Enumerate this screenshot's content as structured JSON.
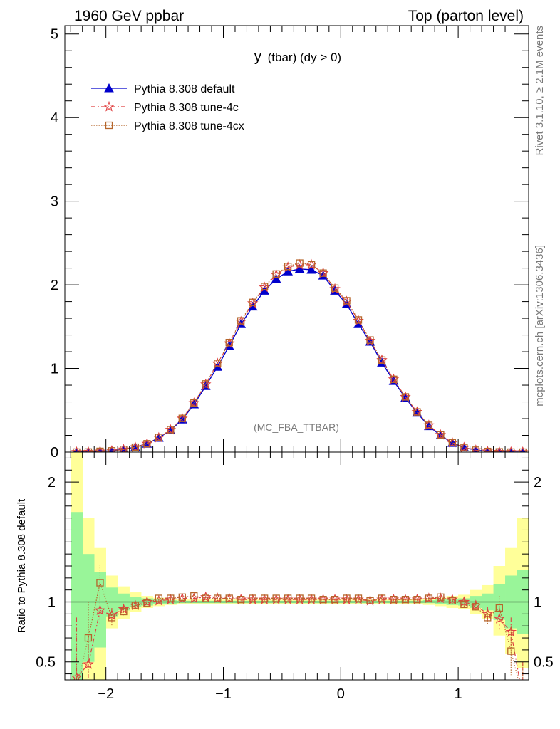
{
  "header": {
    "left": "1960 GeV ppbar",
    "right": "Top (parton level)"
  },
  "side_labels": {
    "rivet": "Rivet 3.1.10, ≥ 2.1M events",
    "mcplots": "mcplots.cern.ch [arXiv:1306.3436]"
  },
  "plot_title": {
    "main": "y",
    "suffix": "(tbar) (dy > 0)"
  },
  "analysis_tag": "(MC_FBA_TTBAR)",
  "ratio_ylabel": "Ratio to Pythia 8.308 default",
  "colors": {
    "default": "#0000cc",
    "tune4c": "#e04040",
    "tune4cx": "#b5652a",
    "band_inner": "#99f599",
    "band_outer": "#ffff99"
  },
  "legend": [
    {
      "label": "Pythia 8.308 default",
      "key": "default"
    },
    {
      "label": "Pythia 8.308 tune-4c",
      "key": "tune4c"
    },
    {
      "label": "Pythia 8.308 tune-4cx",
      "key": "tune4cx"
    }
  ],
  "chart_data": [
    {
      "type": "line",
      "panel": "main",
      "xlim": [
        -2.35,
        1.6
      ],
      "ylim": [
        0,
        5.1
      ],
      "xticks": [
        -2,
        -1,
        0,
        1
      ],
      "yticks": [
        0,
        1,
        2,
        3,
        4,
        5
      ],
      "ytick_labels": [
        "0",
        "1",
        "2",
        "3",
        "4",
        "5"
      ],
      "x": [
        -2.25,
        -2.15,
        -2.05,
        -1.95,
        -1.85,
        -1.75,
        -1.65,
        -1.55,
        -1.45,
        -1.35,
        -1.25,
        -1.15,
        -1.05,
        -0.95,
        -0.85,
        -0.75,
        -0.65,
        -0.55,
        -0.45,
        -0.35,
        -0.25,
        -0.15,
        -0.05,
        0.05,
        0.15,
        0.25,
        0.35,
        0.45,
        0.55,
        0.65,
        0.75,
        0.85,
        0.95,
        1.05,
        1.15,
        1.25,
        1.35,
        1.45,
        1.55
      ],
      "series": [
        {
          "name": "Pythia 8.308 default",
          "key": "default",
          "values": [
            0.002,
            0.004,
            0.008,
            0.017,
            0.033,
            0.06,
            0.1,
            0.17,
            0.26,
            0.39,
            0.57,
            0.79,
            1.02,
            1.27,
            1.53,
            1.74,
            1.93,
            2.07,
            2.16,
            2.19,
            2.18,
            2.11,
            1.93,
            1.77,
            1.53,
            1.32,
            1.07,
            0.85,
            0.65,
            0.47,
            0.31,
            0.2,
            0.11,
            0.055,
            0.024,
            0.009,
            0.003,
            0.001,
            0.0005
          ]
        },
        {
          "name": "Pythia 8.308 tune-4c",
          "key": "tune4c",
          "values": [
            0.0008,
            0.002,
            0.0075,
            0.015,
            0.031,
            0.058,
            0.1,
            0.172,
            0.266,
            0.401,
            0.586,
            0.81,
            1.06,
            1.3,
            1.56,
            1.78,
            1.97,
            2.12,
            2.21,
            2.24,
            2.24,
            2.14,
            1.95,
            1.8,
            1.57,
            1.33,
            1.1,
            0.87,
            0.66,
            0.48,
            0.32,
            0.205,
            0.112,
            0.055,
            0.023,
            0.008,
            0.0026,
            0.00075,
            0.0001
          ]
        },
        {
          "name": "Pythia 8.308 tune-4cx",
          "key": "tune4cx",
          "values": [
            0.0006,
            0.0014,
            0.0092,
            0.015,
            0.032,
            0.059,
            0.1,
            0.175,
            0.268,
            0.403,
            0.588,
            0.815,
            1.06,
            1.31,
            1.57,
            1.79,
            1.98,
            2.13,
            2.22,
            2.26,
            2.24,
            2.14,
            1.96,
            1.81,
            1.58,
            1.34,
            1.1,
            0.87,
            0.66,
            0.48,
            0.32,
            0.206,
            0.112,
            0.054,
            0.023,
            0.0077,
            0.0029,
            0.0006,
            0.0001
          ]
        }
      ]
    },
    {
      "type": "line",
      "panel": "ratio",
      "ylabel": "Ratio to Pythia 8.308 default",
      "xlim": [
        -2.35,
        1.6
      ],
      "ylim": [
        0.35,
        2.25
      ],
      "xticks": [
        -2,
        -1,
        0,
        1
      ],
      "xtick_labels": [
        "−2",
        "−1",
        "0",
        "1"
      ],
      "yticks": [
        0.5,
        1,
        2
      ],
      "ytick_labels": [
        "0.5",
        "1",
        "2"
      ],
      "x": [
        -2.25,
        -2.15,
        -2.05,
        -1.95,
        -1.85,
        -1.75,
        -1.65,
        -1.55,
        -1.45,
        -1.35,
        -1.25,
        -1.15,
        -1.05,
        -0.95,
        -0.85,
        -0.75,
        -0.65,
        -0.55,
        -0.45,
        -0.35,
        -0.25,
        -0.15,
        -0.05,
        0.05,
        0.15,
        0.25,
        0.35,
        0.45,
        0.55,
        0.65,
        0.75,
        0.85,
        0.95,
        1.05,
        1.15,
        1.25,
        1.35,
        1.45,
        1.55
      ],
      "bands": {
        "inner_lo": [
          0.35,
          0.5,
          0.62,
          0.88,
          0.93,
          0.96,
          0.97,
          0.98,
          0.985,
          0.99,
          0.99,
          0.99,
          0.99,
          0.99,
          0.99,
          0.99,
          0.99,
          0.99,
          0.99,
          0.99,
          0.99,
          0.99,
          0.99,
          0.99,
          0.99,
          0.99,
          0.99,
          0.99,
          0.99,
          0.99,
          0.99,
          0.98,
          0.975,
          0.97,
          0.95,
          0.93,
          0.85,
          0.78,
          0.73
        ],
        "inner_hi": [
          1.75,
          1.4,
          1.25,
          1.12,
          1.07,
          1.04,
          1.03,
          1.02,
          1.015,
          1.01,
          1.01,
          1.01,
          1.01,
          1.01,
          1.01,
          1.01,
          1.01,
          1.01,
          1.01,
          1.01,
          1.01,
          1.01,
          1.01,
          1.01,
          1.01,
          1.01,
          1.01,
          1.01,
          1.01,
          1.01,
          1.015,
          1.02,
          1.025,
          1.03,
          1.05,
          1.07,
          1.15,
          1.22,
          1.27
        ],
        "outer_lo": [
          0.35,
          0.35,
          0.35,
          0.78,
          0.86,
          0.92,
          0.95,
          0.965,
          0.975,
          0.98,
          0.98,
          0.98,
          0.98,
          0.98,
          0.98,
          0.98,
          0.98,
          0.98,
          0.98,
          0.98,
          0.98,
          0.98,
          0.98,
          0.98,
          0.98,
          0.98,
          0.98,
          0.98,
          0.98,
          0.98,
          0.975,
          0.965,
          0.95,
          0.94,
          0.9,
          0.86,
          0.72,
          0.57,
          0.45
        ],
        "outer_hi": [
          2.25,
          1.7,
          1.45,
          1.22,
          1.13,
          1.08,
          1.05,
          1.035,
          1.025,
          1.02,
          1.02,
          1.02,
          1.02,
          1.02,
          1.02,
          1.02,
          1.02,
          1.02,
          1.02,
          1.02,
          1.02,
          1.02,
          1.02,
          1.02,
          1.02,
          1.02,
          1.02,
          1.02,
          1.02,
          1.02,
          1.025,
          1.035,
          1.05,
          1.06,
          1.1,
          1.14,
          1.3,
          1.45,
          1.7
        ]
      },
      "reference": 1,
      "series": [
        {
          "name": "Pythia 8.308 tune-4c",
          "key": "tune4c",
          "values": [
            0.37,
            0.48,
            0.93,
            0.89,
            0.94,
            0.97,
            1.0,
            1.01,
            1.02,
            1.03,
            1.03,
            1.04,
            1.03,
            1.03,
            1.02,
            1.02,
            1.02,
            1.02,
            1.02,
            1.02,
            1.02,
            1.02,
            1.02,
            1.02,
            1.02,
            1.01,
            1.02,
            1.02,
            1.02,
            1.02,
            1.03,
            1.03,
            1.02,
            1.0,
            0.97,
            0.9,
            0.86,
            0.75,
            0.2
          ],
          "errors": [
            0.5,
            0.25,
            0.12,
            0.06,
            0.04,
            0.025,
            0.02,
            0.015,
            0.01,
            0.01,
            0.01,
            0.01,
            0.01,
            0.01,
            0.01,
            0.01,
            0.01,
            0.01,
            0.01,
            0.01,
            0.01,
            0.01,
            0.01,
            0.01,
            0.01,
            0.01,
            0.01,
            0.01,
            0.01,
            0.01,
            0.015,
            0.02,
            0.025,
            0.03,
            0.04,
            0.06,
            0.09,
            0.12,
            0.3
          ]
        },
        {
          "name": "Pythia 8.308 tune-4cx",
          "key": "tune4cx",
          "values": [
            0.28,
            0.7,
            1.16,
            0.87,
            0.92,
            0.97,
            0.99,
            1.03,
            1.03,
            1.04,
            1.05,
            1.03,
            1.03,
            1.03,
            1.02,
            1.03,
            1.03,
            1.03,
            1.03,
            1.03,
            1.03,
            1.02,
            1.02,
            1.03,
            1.03,
            1.01,
            1.03,
            1.02,
            1.02,
            1.02,
            1.03,
            1.04,
            1.01,
            0.98,
            0.96,
            0.87,
            0.95,
            0.59,
            0.2
          ],
          "errors": [
            0.5,
            0.3,
            0.15,
            0.07,
            0.04,
            0.025,
            0.02,
            0.015,
            0.01,
            0.01,
            0.01,
            0.01,
            0.01,
            0.01,
            0.01,
            0.01,
            0.01,
            0.01,
            0.01,
            0.01,
            0.01,
            0.01,
            0.01,
            0.01,
            0.01,
            0.01,
            0.01,
            0.01,
            0.01,
            0.01,
            0.015,
            0.02,
            0.025,
            0.03,
            0.04,
            0.06,
            0.1,
            0.2,
            0.3
          ]
        }
      ]
    }
  ]
}
